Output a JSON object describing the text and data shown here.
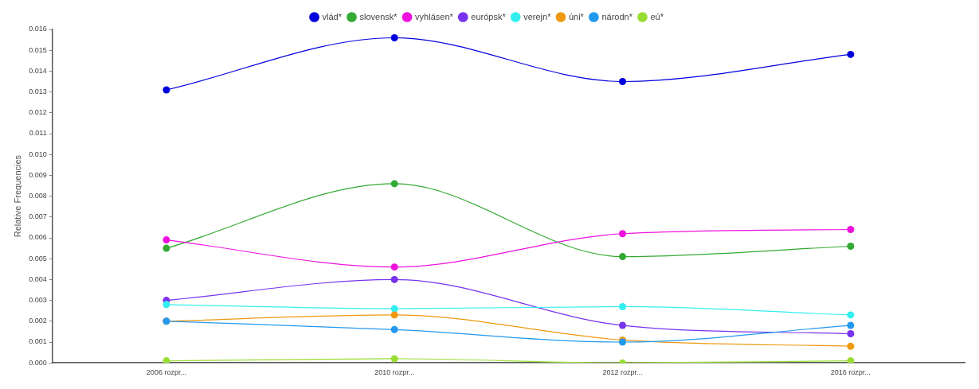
{
  "chart_data": {
    "type": "line",
    "ylabel": "Relative Frequencies",
    "categories": [
      "2006 rozpr...",
      "2010 rozpr...",
      "2012 rozpr...",
      "2016 rozpr..."
    ],
    "ylim": [
      0,
      0.016
    ],
    "yticks": [
      {
        "value": 0,
        "label": "0.000"
      },
      {
        "value": 0.001,
        "label": "0.001"
      },
      {
        "value": 0.002,
        "label": "0.002"
      },
      {
        "value": 0.003,
        "label": "0.003"
      },
      {
        "value": 0.004,
        "label": "0.004"
      },
      {
        "value": 0.005,
        "label": "0.005"
      },
      {
        "value": 0.006,
        "label": "0.006"
      },
      {
        "value": 0.007,
        "label": "0.007"
      },
      {
        "value": 0.008,
        "label": "0.008"
      },
      {
        "value": 0.009,
        "label": "0.009"
      },
      {
        "value": 0.01,
        "label": "0.010"
      },
      {
        "value": 0.011,
        "label": "0.011"
      },
      {
        "value": 0.012,
        "label": "0.012"
      },
      {
        "value": 0.013,
        "label": "0.013"
      },
      {
        "value": 0.014,
        "label": "0.014"
      },
      {
        "value": 0.015,
        "label": "0.015"
      },
      {
        "value": 0.016,
        "label": "0.016"
      }
    ],
    "grid": false,
    "legend": "top",
    "marker": "circle",
    "line_style": "solid",
    "series": [
      {
        "name": "vlád*",
        "color": "#0000dd",
        "values": [
          0.0131,
          0.0156,
          0.0135,
          0.0148
        ]
      },
      {
        "name": "slovensk*",
        "color": "#33aa33",
        "values": [
          0.0055,
          0.0086,
          0.0051,
          0.0056
        ]
      },
      {
        "name": "vyhlásen*",
        "color": "#ee11dd",
        "values": [
          0.0059,
          0.0046,
          0.0062,
          0.0064
        ]
      },
      {
        "name": "európsk*",
        "color": "#7733ee",
        "values": [
          0.003,
          0.004,
          0.0018,
          0.0014
        ]
      },
      {
        "name": "verejn*",
        "color": "#33eeee",
        "values": [
          0.0028,
          0.0026,
          0.0027,
          0.0023
        ]
      },
      {
        "name": "úni*",
        "color": "#ee9911",
        "values": [
          0.002,
          0.0023,
          0.0011,
          0.0008
        ]
      },
      {
        "name": "národn*",
        "color": "#2299ee",
        "values": [
          0.002,
          0.0016,
          0.001,
          0.0018
        ]
      },
      {
        "name": "eú*",
        "color": "#99dd33",
        "values": [
          0.0001,
          0.0002,
          0,
          0.0001
        ]
      }
    ]
  }
}
